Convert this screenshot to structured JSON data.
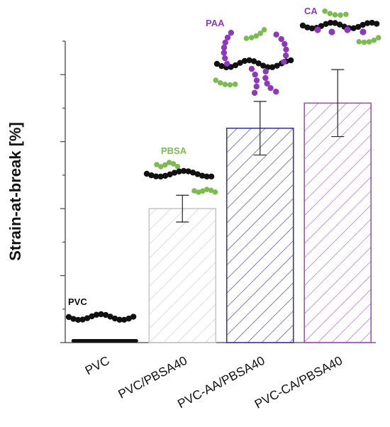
{
  "chart_data": {
    "type": "bar",
    "ylabel": "Strain-at-break [%]",
    "categories": [
      "PVC",
      "PVC/PBSA40",
      "PVC-AA/PBSA40",
      "PVC-CA/PBSA40"
    ],
    "values": [
      0.1,
      4.0,
      6.4,
      7.15
    ],
    "errors": [
      0.0,
      0.4,
      0.8,
      1.0
    ],
    "ylim": [
      0,
      9
    ],
    "grid": false,
    "bar_colors": [
      "#222222",
      "#c8c8c8",
      "#3a3c8c",
      "#9e4fb0"
    ],
    "annotations": [
      {
        "text": "PVC",
        "color": "#111111"
      },
      {
        "text": "PBSA",
        "color": "#7dbb52"
      },
      {
        "text": "PAA",
        "color": "#8b3ab8"
      },
      {
        "text": "CA",
        "color": "#8b3ab8"
      }
    ]
  }
}
